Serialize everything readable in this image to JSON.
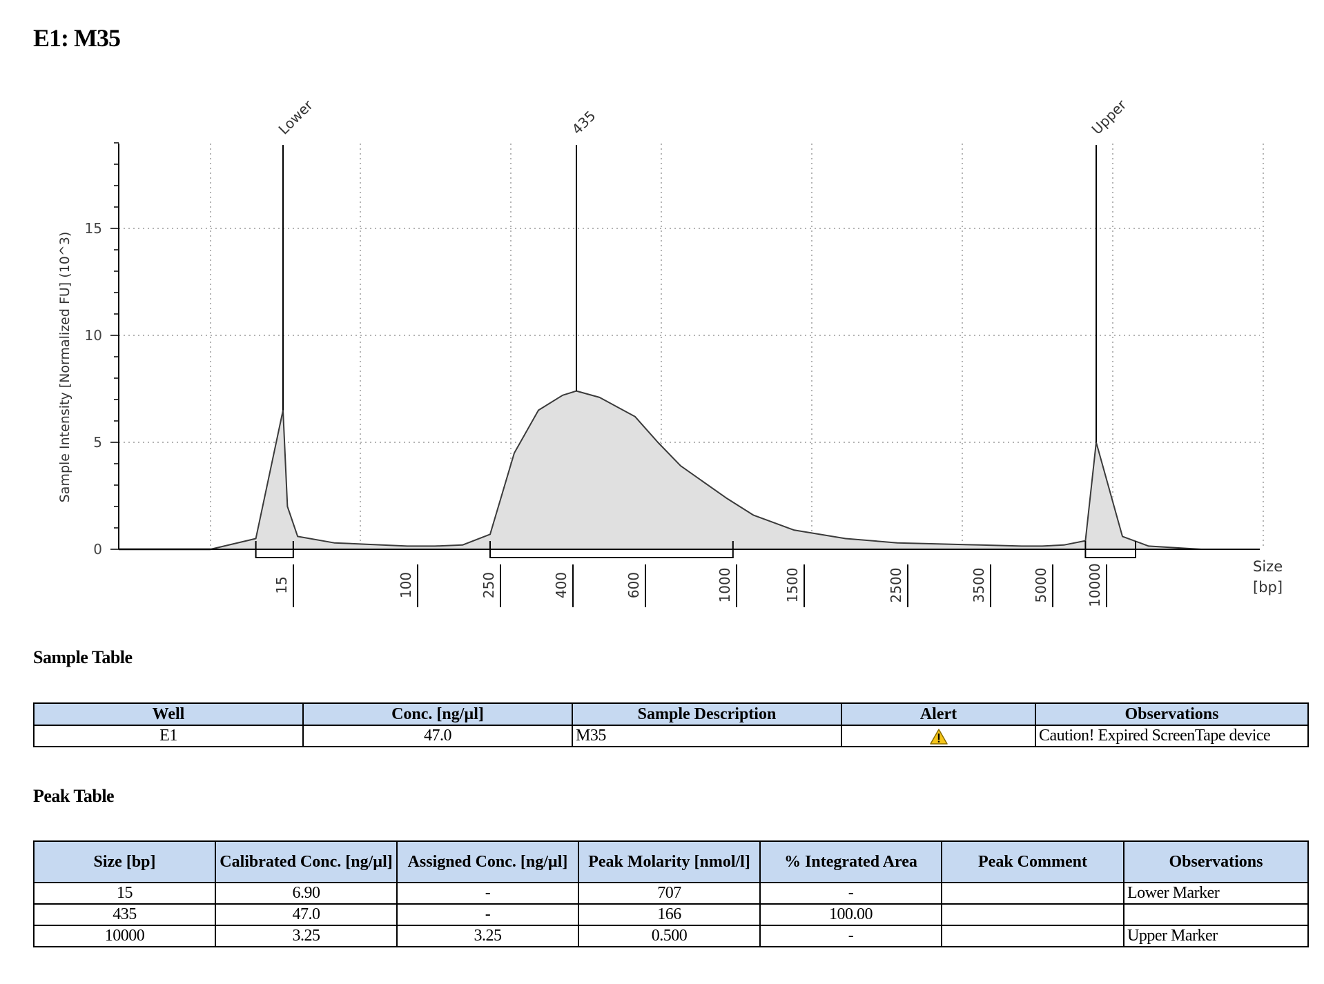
{
  "title": "E1: M35",
  "chart_data": {
    "type": "area",
    "ylabel": "Sample Intensity [Normalized FU] (10^3)",
    "xlabel": "Size\n[bp]",
    "xlabel_lines": [
      "Size",
      "[bp]"
    ],
    "yticks": [
      "0",
      "5",
      "10",
      "15"
    ],
    "ylim": [
      0,
      19
    ],
    "xticks": [
      "15",
      "100",
      "250",
      "400",
      "600",
      "1000",
      "1500",
      "2500",
      "3500",
      "5000",
      "10000"
    ],
    "x": [
      15,
      100,
      250,
      300,
      350,
      400,
      435,
      500,
      600,
      800,
      1000,
      1500,
      2500,
      3500,
      5000,
      10000,
      12000
    ],
    "peaks": [
      {
        "label": "Lower",
        "size": 15,
        "height": 6.5
      },
      {
        "label": "435",
        "size": 435,
        "height": 7.4
      },
      {
        "label": "Upper",
        "size": 10000,
        "height": 5.0
      }
    ],
    "series": [
      {
        "x": [
          7,
          12,
          15,
          18,
          25,
          50,
          100,
          150,
          200,
          250,
          300,
          350,
          400,
          435,
          500,
          600,
          700,
          800,
          1000,
          1200,
          1500,
          2000,
          2500,
          3500,
          4500,
          5000,
          7000,
          9000,
          10000,
          11000,
          12000,
          14000
        ],
        "y": [
          0,
          0.5,
          6.5,
          2.0,
          0.6,
          0.3,
          0.15,
          0.15,
          0.2,
          0.7,
          4.5,
          6.5,
          7.2,
          7.4,
          7.1,
          6.2,
          5.0,
          3.9,
          2.4,
          1.6,
          0.9,
          0.5,
          0.3,
          0.2,
          0.15,
          0.15,
          0.2,
          0.4,
          5.0,
          0.6,
          0.15,
          0
        ]
      }
    ],
    "regions": [
      {
        "from": 12,
        "to": 22
      },
      {
        "from": 250,
        "to": 1050
      },
      {
        "from": 9000,
        "to": 11500
      }
    ],
    "grid": true
  },
  "sample_table": {
    "title": "Sample Table",
    "headers": [
      "Well",
      "Conc. [ng/µl]",
      "Sample Description",
      "Alert",
      "Observations"
    ],
    "rows": [
      {
        "well": "E1",
        "conc": "47.0",
        "description": "M35",
        "alert": "warning-icon",
        "observations": "Caution! Expired ScreenTape device"
      }
    ]
  },
  "peak_table": {
    "title": "Peak Table",
    "headers": [
      "Size [bp]",
      "Calibrated Conc. [ng/µl]",
      "Assigned Conc. [ng/µl]",
      "Peak Molarity [nmol/l]",
      "% Integrated Area",
      "Peak Comment",
      "Observations"
    ],
    "rows": [
      [
        "15",
        "6.90",
        "-",
        "707",
        "-",
        "",
        "Lower Marker"
      ],
      [
        "435",
        "47.0",
        "-",
        "166",
        "100.00",
        "",
        ""
      ],
      [
        "10000",
        "3.25",
        "3.25",
        "0.500",
        "-",
        "",
        "Upper Marker"
      ]
    ]
  },
  "colors": {
    "fill": "#e0e0e0",
    "line": "#3a3a3a",
    "header_bg": "#c6d9f1",
    "warning": "#f5c518"
  }
}
